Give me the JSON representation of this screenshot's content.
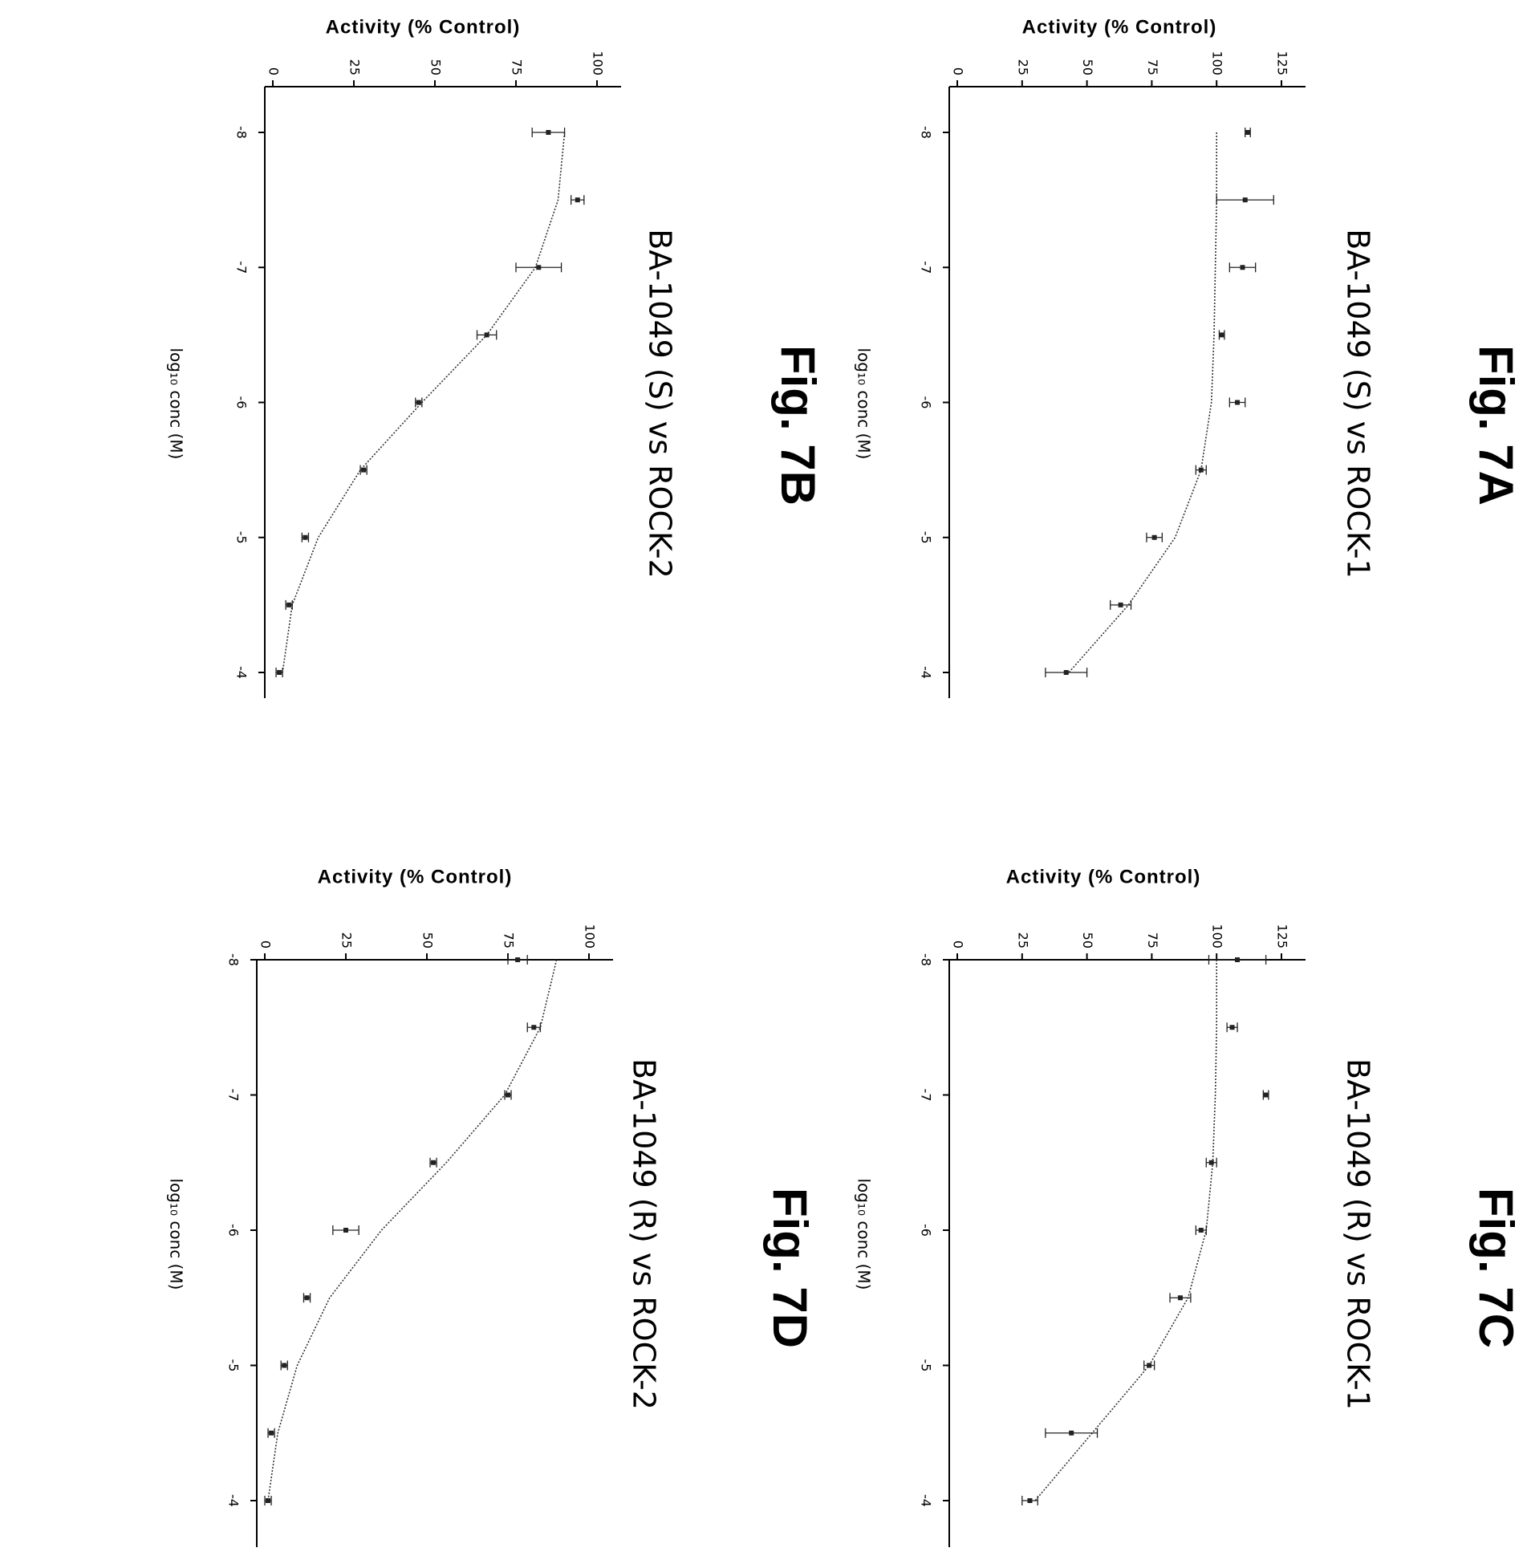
{
  "chart_data": [
    {
      "type": "scatter",
      "figure_label": "Fig. 7A",
      "title": "BA-1049 (S) vs ROCK-1",
      "xlabel": "log₁₀ conc (M)",
      "ylabel": "Activity (% Control)",
      "xlim": [
        -8,
        -4
      ],
      "ylim": [
        0,
        125
      ],
      "xticks": [
        "-8",
        "-7",
        "-6",
        "-5",
        "-4"
      ],
      "yticks": [
        "0",
        "25",
        "50",
        "75",
        "100",
        "125"
      ],
      "x": [
        -8,
        -7.5,
        -7,
        -6.5,
        -6,
        -5.5,
        -5,
        -4.5,
        -4
      ],
      "y": [
        112,
        111,
        110,
        102,
        108,
        94,
        76,
        63,
        42
      ],
      "errors": [
        1,
        11,
        5,
        1,
        3,
        2,
        3,
        4,
        8
      ],
      "fit": [
        100,
        100,
        99.5,
        99,
        98,
        94,
        84,
        66,
        43
      ]
    },
    {
      "type": "scatter",
      "figure_label": "Fig. 7B",
      "title": "BA-1049 (S) vs ROCK-2",
      "xlabel": "log₁₀ conc (M)",
      "ylabel": "Activity (% Control)",
      "xlim": [
        -8,
        -4
      ],
      "ylim": [
        0,
        100
      ],
      "xticks": [
        "-8",
        "-7",
        "-6",
        "-5",
        "-4"
      ],
      "yticks": [
        "0",
        "25",
        "50",
        "75",
        "100"
      ],
      "x": [
        -8,
        -7.5,
        -7,
        -6.5,
        -6,
        -5.5,
        -5,
        -4.5,
        -4
      ],
      "y": [
        85,
        94,
        82,
        66,
        45,
        28,
        10,
        5,
        2
      ],
      "errors": [
        5,
        2,
        7,
        3,
        1,
        1,
        1,
        1,
        1
      ],
      "fit": [
        90,
        88,
        81,
        66,
        46,
        27,
        14,
        6,
        3
      ]
    },
    {
      "type": "scatter",
      "figure_label": "Fig. 7C",
      "title": "BA-1049 (R) vs ROCK-1",
      "xlabel": "log₁₀ conc (M)",
      "ylabel": "Activity (% Control)",
      "xlim": [
        -8,
        -4
      ],
      "ylim": [
        0,
        125
      ],
      "xticks": [
        "-8",
        "-7",
        "-6",
        "-5",
        "-4"
      ],
      "yticks": [
        "0",
        "25",
        "50",
        "75",
        "100",
        "125"
      ],
      "x": [
        -8,
        -7.5,
        -7,
        -6.5,
        -6,
        -5.5,
        -5,
        -4.5,
        -4
      ],
      "y": [
        108,
        106,
        119,
        98,
        94,
        86,
        74,
        44,
        28
      ],
      "errors": [
        11,
        2,
        1,
        2,
        2,
        4,
        2,
        10,
        3
      ],
      "fit": [
        100,
        100,
        99.5,
        98.5,
        96,
        89,
        74,
        52,
        30
      ]
    },
    {
      "type": "scatter",
      "figure_label": "Fig. 7D",
      "title": "BA-1049 (R) vs ROCK-2",
      "xlabel": "log₁₀ conc (M)",
      "ylabel": "Activity (% Control)",
      "xlim": [
        -8,
        -4
      ],
      "ylim": [
        0,
        100
      ],
      "xticks": [
        "-8",
        "-7",
        "-6",
        "-5",
        "-4"
      ],
      "yticks": [
        "0",
        "25",
        "50",
        "75",
        "100"
      ],
      "x": [
        -8,
        -7.5,
        -7,
        -6.5,
        -6,
        -5.5,
        -5,
        -4.5,
        -4
      ],
      "y": [
        78,
        83,
        75,
        52,
        25,
        13,
        6,
        2,
        1
      ],
      "errors": [
        3,
        2,
        1,
        1,
        4,
        1,
        1,
        1,
        1
      ],
      "fit": [
        90,
        85,
        74,
        56,
        36,
        20,
        10,
        4,
        1
      ]
    }
  ]
}
